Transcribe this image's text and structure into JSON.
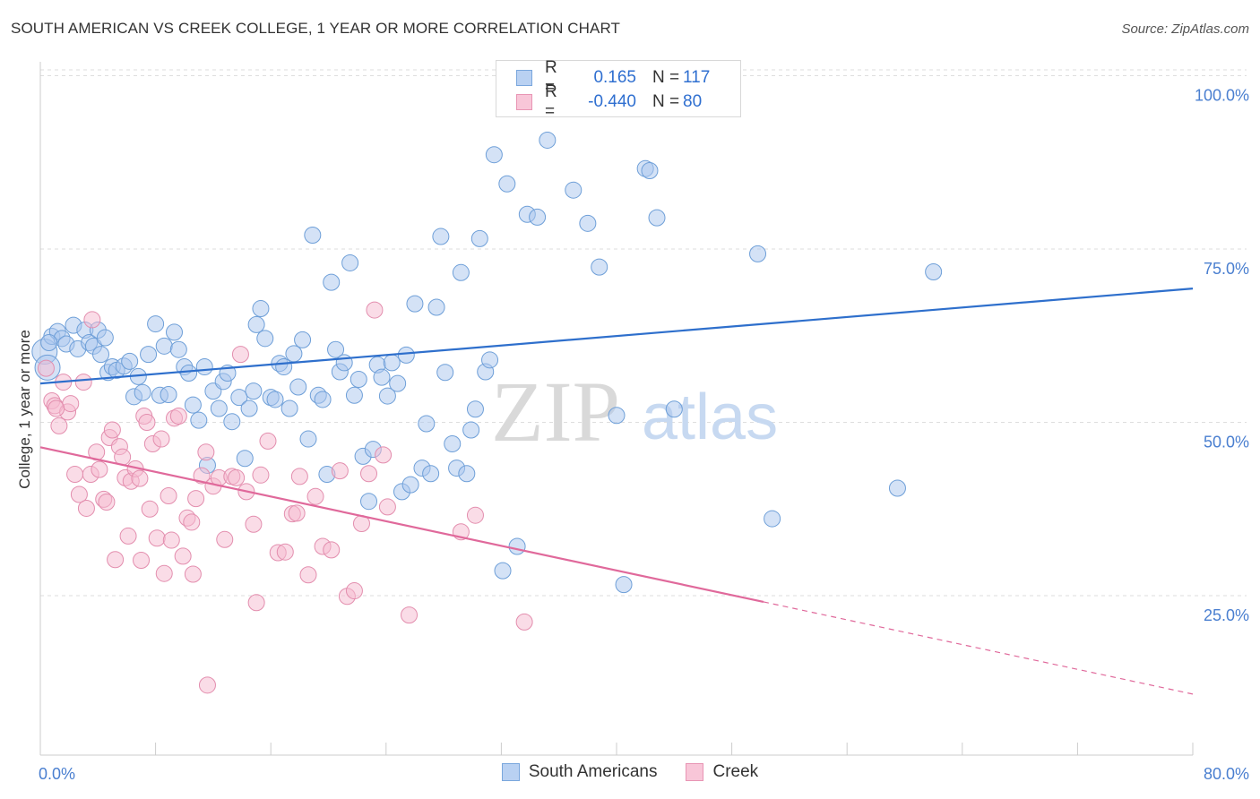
{
  "title": "SOUTH AMERICAN VS CREEK COLLEGE, 1 YEAR OR MORE CORRELATION CHART",
  "source": "Source: ZipAtlas.com",
  "watermark": {
    "zip": "ZIP",
    "atlas": "atlas"
  },
  "legend_top": {
    "rows": [
      {
        "r_label": "R =",
        "r_value": "0.165",
        "n_label": "N =",
        "n_value": "117"
      },
      {
        "r_label": "R =",
        "r_value": "-0.440",
        "n_label": "N =",
        "n_value": "80"
      }
    ]
  },
  "chart_data": {
    "type": "scatter",
    "title": "SOUTH AMERICAN VS CREEK COLLEGE, 1 YEAR OR MORE CORRELATION CHART",
    "xlabel": "",
    "ylabel": "College, 1 year or more",
    "xlim": [
      0,
      80
    ],
    "ylim": [
      2,
      102
    ],
    "x_tick_labels": [
      "0.0%",
      "80.0%"
    ],
    "y_ticks": [
      {
        "value": 25,
        "label": "25.0%"
      },
      {
        "value": 50,
        "label": "50.0%"
      },
      {
        "value": 75,
        "label": "75.0%"
      },
      {
        "value": 100,
        "label": "100.0%"
      }
    ],
    "grid": "horizontal dashed",
    "legend": "bottom-center",
    "series": [
      {
        "name": "South Americans",
        "color": "#a9c6ee",
        "stroke": "#6e9fd8",
        "trend": {
          "x": [
            0,
            80
          ],
          "y": [
            55.6,
            69.3
          ],
          "color": "#2e6fcc"
        },
        "points": [
          [
            0.3,
            60.2
          ],
          [
            0.5,
            57.9
          ],
          [
            0.8,
            62.4
          ],
          [
            1.2,
            63.1
          ],
          [
            1.5,
            62.1
          ],
          [
            1.8,
            61.3
          ],
          [
            2.3,
            64.0
          ],
          [
            2.6,
            60.6
          ],
          [
            3.1,
            63.3
          ],
          [
            3.4,
            61.5
          ],
          [
            3.7,
            61.0
          ],
          [
            4.0,
            63.3
          ],
          [
            4.2,
            59.8
          ],
          [
            4.5,
            62.2
          ],
          [
            4.7,
            57.2
          ],
          [
            5.0,
            58.0
          ],
          [
            5.3,
            57.5
          ],
          [
            5.8,
            58.1
          ],
          [
            6.2,
            58.8
          ],
          [
            6.5,
            53.7
          ],
          [
            6.8,
            56.6
          ],
          [
            7.1,
            54.3
          ],
          [
            7.5,
            59.8
          ],
          [
            8.0,
            64.2
          ],
          [
            8.3,
            53.9
          ],
          [
            8.6,
            61.0
          ],
          [
            8.9,
            54.0
          ],
          [
            9.3,
            63.0
          ],
          [
            9.6,
            60.5
          ],
          [
            10.0,
            58.0
          ],
          [
            10.3,
            57.1
          ],
          [
            10.6,
            52.5
          ],
          [
            11.0,
            50.3
          ],
          [
            11.4,
            58.0
          ],
          [
            11.6,
            43.8
          ],
          [
            12.0,
            54.5
          ],
          [
            12.4,
            52.0
          ],
          [
            12.7,
            55.9
          ],
          [
            13.0,
            57.1
          ],
          [
            13.3,
            50.1
          ],
          [
            13.8,
            53.6
          ],
          [
            14.2,
            44.8
          ],
          [
            14.5,
            52.0
          ],
          [
            14.8,
            54.5
          ],
          [
            15.0,
            64.1
          ],
          [
            15.3,
            66.4
          ],
          [
            15.6,
            62.1
          ],
          [
            16.0,
            53.6
          ],
          [
            16.3,
            53.3
          ],
          [
            16.6,
            58.5
          ],
          [
            16.9,
            58.0
          ],
          [
            17.3,
            52.0
          ],
          [
            17.6,
            59.9
          ],
          [
            17.9,
            55.1
          ],
          [
            18.2,
            61.9
          ],
          [
            18.6,
            47.6
          ],
          [
            18.9,
            77.0
          ],
          [
            19.3,
            53.9
          ],
          [
            19.6,
            53.3
          ],
          [
            19.9,
            42.5
          ],
          [
            20.2,
            70.2
          ],
          [
            20.5,
            60.5
          ],
          [
            20.8,
            57.3
          ],
          [
            21.1,
            58.6
          ],
          [
            21.5,
            73.0
          ],
          [
            21.8,
            53.9
          ],
          [
            22.1,
            56.2
          ],
          [
            22.4,
            45.1
          ],
          [
            22.8,
            38.6
          ],
          [
            23.1,
            46.1
          ],
          [
            23.4,
            58.3
          ],
          [
            23.7,
            56.5
          ],
          [
            24.1,
            53.8
          ],
          [
            24.4,
            58.6
          ],
          [
            24.8,
            55.6
          ],
          [
            25.1,
            40.0
          ],
          [
            25.4,
            59.7
          ],
          [
            25.7,
            41.0
          ],
          [
            26.0,
            67.1
          ],
          [
            26.5,
            43.4
          ],
          [
            26.8,
            49.8
          ],
          [
            27.1,
            42.6
          ],
          [
            27.5,
            66.6
          ],
          [
            27.8,
            76.8
          ],
          [
            28.1,
            57.2
          ],
          [
            28.6,
            46.9
          ],
          [
            28.9,
            43.4
          ],
          [
            29.2,
            71.6
          ],
          [
            29.6,
            42.6
          ],
          [
            29.9,
            48.9
          ],
          [
            30.2,
            51.9
          ],
          [
            30.5,
            76.5
          ],
          [
            30.9,
            57.3
          ],
          [
            31.2,
            59.0
          ],
          [
            31.5,
            88.6
          ],
          [
            32.1,
            28.6
          ],
          [
            32.4,
            84.4
          ],
          [
            33.1,
            32.1
          ],
          [
            33.8,
            80.0
          ],
          [
            34.5,
            79.6
          ],
          [
            35.2,
            90.7
          ],
          [
            35.7,
            100.0
          ],
          [
            37.0,
            83.5
          ],
          [
            38.0,
            78.7
          ],
          [
            38.8,
            72.4
          ],
          [
            40.0,
            51.0
          ],
          [
            40.5,
            26.6
          ],
          [
            41.2,
            100.0
          ],
          [
            42.0,
            86.6
          ],
          [
            42.3,
            86.3
          ],
          [
            42.8,
            79.5
          ],
          [
            44.0,
            51.9
          ],
          [
            49.8,
            74.3
          ],
          [
            50.8,
            36.1
          ],
          [
            59.5,
            40.5
          ],
          [
            62.0,
            71.7
          ],
          [
            0.6,
            61.5
          ]
        ]
      },
      {
        "name": "Creek",
        "color": "#f5b9cf",
        "stroke": "#e38eae",
        "trend": {
          "x": [
            0,
            50.2
          ],
          "y": [
            46.4,
            24.1
          ],
          "color": "#e0699b",
          "dashed_to": {
            "x": 80,
            "y": 10.8
          }
        },
        "points": [
          [
            0.4,
            57.8
          ],
          [
            0.8,
            53.1
          ],
          [
            1.0,
            52.4
          ],
          [
            1.3,
            49.5
          ],
          [
            1.6,
            55.8
          ],
          [
            1.9,
            51.5
          ],
          [
            2.1,
            52.7
          ],
          [
            2.4,
            42.5
          ],
          [
            2.7,
            39.6
          ],
          [
            3.0,
            55.8
          ],
          [
            3.2,
            37.6
          ],
          [
            3.5,
            42.5
          ],
          [
            3.6,
            64.8
          ],
          [
            3.9,
            45.7
          ],
          [
            4.1,
            43.2
          ],
          [
            4.4,
            38.9
          ],
          [
            4.6,
            38.5
          ],
          [
            4.8,
            47.8
          ],
          [
            5.0,
            48.9
          ],
          [
            5.2,
            30.2
          ],
          [
            5.5,
            46.5
          ],
          [
            5.7,
            45.0
          ],
          [
            5.9,
            42.0
          ],
          [
            6.1,
            33.6
          ],
          [
            6.3,
            41.5
          ],
          [
            6.6,
            43.3
          ],
          [
            6.9,
            41.9
          ],
          [
            7.0,
            30.1
          ],
          [
            7.2,
            50.9
          ],
          [
            7.4,
            50.0
          ],
          [
            7.6,
            37.5
          ],
          [
            7.8,
            46.9
          ],
          [
            8.1,
            33.3
          ],
          [
            8.4,
            47.6
          ],
          [
            8.6,
            28.2
          ],
          [
            8.9,
            39.4
          ],
          [
            9.1,
            33.0
          ],
          [
            9.3,
            50.6
          ],
          [
            9.6,
            50.9
          ],
          [
            9.9,
            30.7
          ],
          [
            10.2,
            36.2
          ],
          [
            10.5,
            35.6
          ],
          [
            10.6,
            28.1
          ],
          [
            10.8,
            39.0
          ],
          [
            11.2,
            42.3
          ],
          [
            11.5,
            45.7
          ],
          [
            11.6,
            12.1
          ],
          [
            12.0,
            40.8
          ],
          [
            12.4,
            42.0
          ],
          [
            12.8,
            33.1
          ],
          [
            13.3,
            42.2
          ],
          [
            13.6,
            42.0
          ],
          [
            13.9,
            59.8
          ],
          [
            14.3,
            40.0
          ],
          [
            14.8,
            35.3
          ],
          [
            15.0,
            24.0
          ],
          [
            15.3,
            42.4
          ],
          [
            15.8,
            47.3
          ],
          [
            16.5,
            31.2
          ],
          [
            17.0,
            31.3
          ],
          [
            17.5,
            36.8
          ],
          [
            18.0,
            42.2
          ],
          [
            18.6,
            28.0
          ],
          [
            19.1,
            39.3
          ],
          [
            19.6,
            32.1
          ],
          [
            20.2,
            31.6
          ],
          [
            20.8,
            43.0
          ],
          [
            21.3,
            24.9
          ],
          [
            21.8,
            25.7
          ],
          [
            22.3,
            35.4
          ],
          [
            22.8,
            42.6
          ],
          [
            23.2,
            66.2
          ],
          [
            23.8,
            45.3
          ],
          [
            24.1,
            37.8
          ],
          [
            25.6,
            22.2
          ],
          [
            29.2,
            34.2
          ],
          [
            30.2,
            36.6
          ],
          [
            33.6,
            21.2
          ],
          [
            17.8,
            36.9
          ],
          [
            1.1,
            52.0
          ]
        ]
      }
    ]
  }
}
